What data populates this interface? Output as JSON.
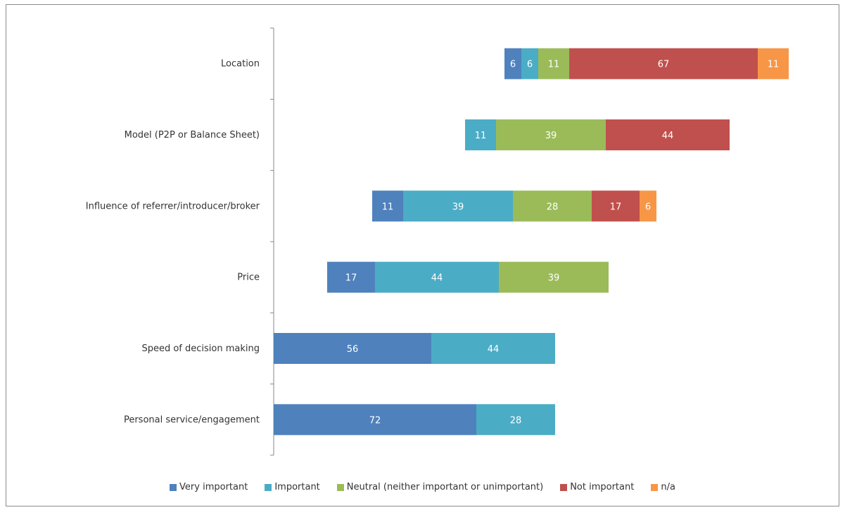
{
  "chart_data": {
    "type": "bar",
    "orientation": "horizontal",
    "stacked": true,
    "title": "",
    "xlabel": "",
    "ylabel": "",
    "grid": false,
    "legend_position": "bottom",
    "categories": [
      "Location",
      "Model (P2P or Balance Sheet)",
      "Influence of referrer/introducer/broker",
      "Price",
      "Speed of decision making",
      "Personal service/engagement"
    ],
    "series": [
      {
        "name": "Very important",
        "color": "#4f81bd",
        "values": [
          6,
          null,
          11,
          17,
          56,
          72
        ]
      },
      {
        "name": "Important",
        "color": "#4bacc6",
        "values": [
          6,
          11,
          39,
          44,
          44,
          28
        ]
      },
      {
        "name": "Neutral (neither important or unimportant)",
        "color": "#9bbb59",
        "values": [
          11,
          39,
          28,
          39,
          null,
          null
        ]
      },
      {
        "name": "Not important",
        "color": "#c0504d",
        "values": [
          67,
          44,
          17,
          null,
          null,
          null
        ]
      },
      {
        "name": "n/a",
        "color": "#f79646",
        "values": [
          11,
          null,
          6,
          null,
          null,
          null
        ]
      }
    ]
  }
}
